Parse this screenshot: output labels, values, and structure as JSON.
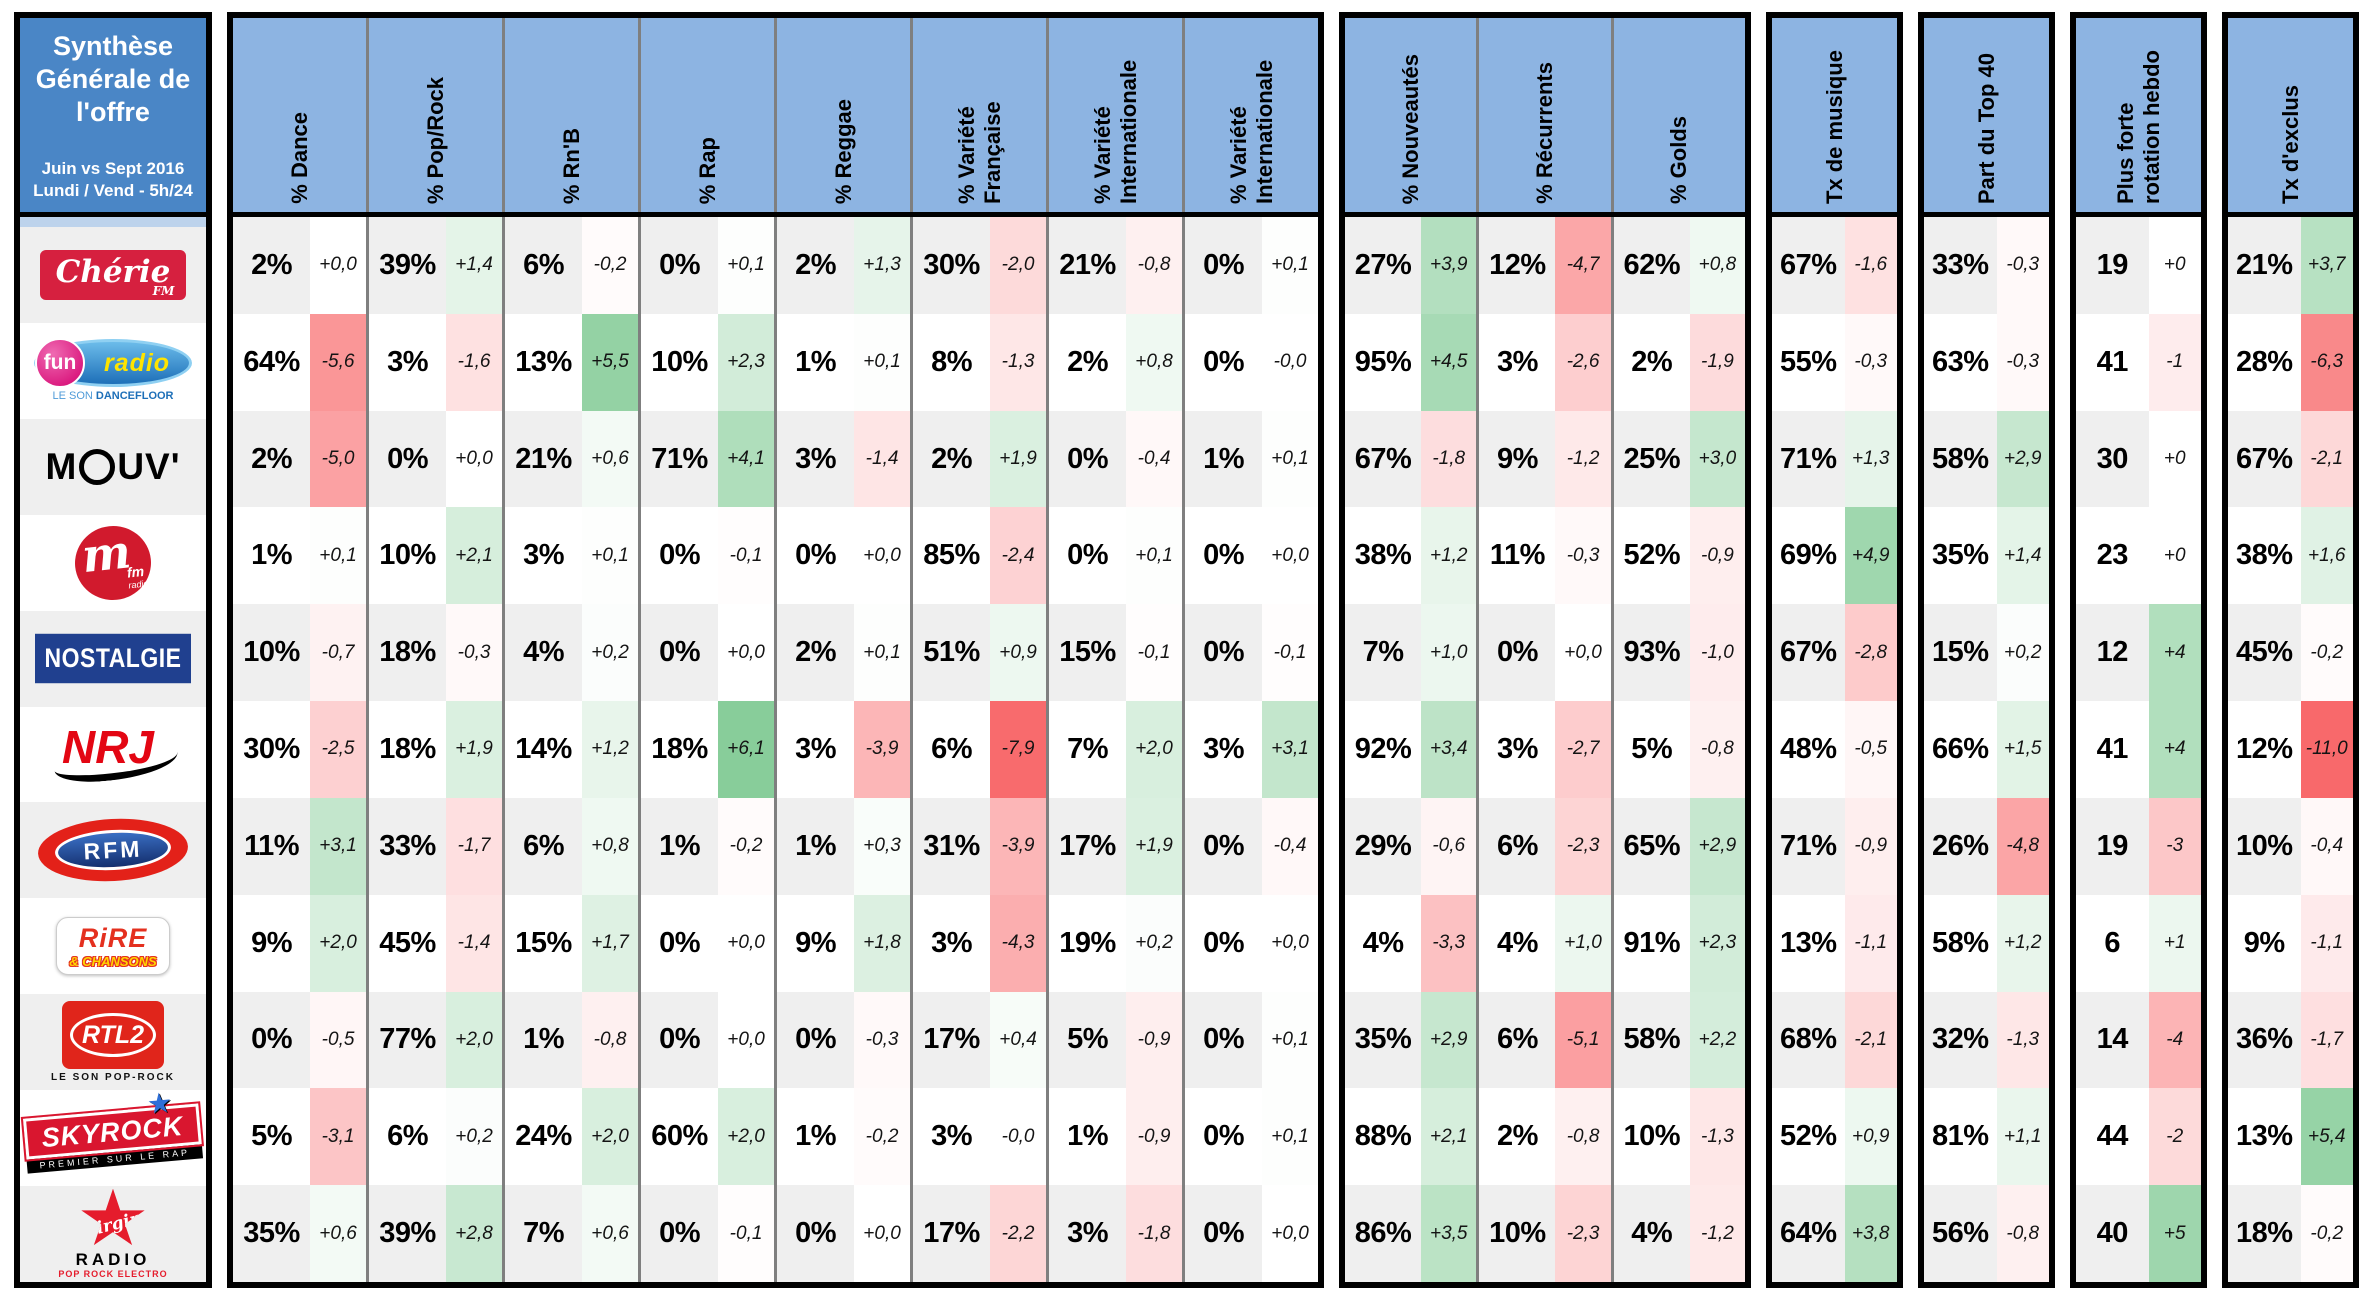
{
  "title": {
    "main": "Synthèse Générale de l'offre",
    "period": "Juin vs Sept 2016",
    "scope": "Lundi / Vend - 5h/24"
  },
  "colors": {
    "title_blue": "#4a86c6",
    "header_blue": "#8db4e2",
    "stripe_gray": "#efefef",
    "divider_gray": "#7f7f7f",
    "positive_green": "#63be7b",
    "negative_red": "#f8696b"
  },
  "delta_scale_max": 8,
  "groups": [
    {
      "id": "genres",
      "columns": [
        "% Dance",
        "% Pop/Rock",
        "% Rn'B",
        "% Rap",
        "% Reggae",
        "% Variété Française",
        "% Variété Internationale",
        "% Variété Internationale"
      ]
    },
    {
      "id": "cycle",
      "columns": [
        "% Nouveautés",
        "% Récurrents",
        "% Golds"
      ]
    },
    {
      "id": "musique",
      "columns": [
        "Tx de musique"
      ]
    },
    {
      "id": "top40",
      "columns": [
        "Part du Top 40"
      ]
    },
    {
      "id": "rotation",
      "columns": [
        "Plus forte rotation hebdo"
      ]
    },
    {
      "id": "exclus",
      "columns": [
        "Tx d'exclus"
      ]
    }
  ],
  "stations": [
    {
      "id": "cherie",
      "name": "Chérie FM",
      "logo": {
        "script": "Chérie",
        "fm": "FM"
      },
      "cells": [
        [
          "2%",
          "+0,0"
        ],
        [
          "39%",
          "+1,4"
        ],
        [
          "6%",
          "-0,2"
        ],
        [
          "0%",
          "+0,1"
        ],
        [
          "2%",
          "+1,3"
        ],
        [
          "30%",
          "-2,0"
        ],
        [
          "21%",
          "-0,8"
        ],
        [
          "0%",
          "+0,1"
        ],
        [
          "27%",
          "+3,9"
        ],
        [
          "12%",
          "-4,7"
        ],
        [
          "62%",
          "+0,8"
        ],
        [
          "67%",
          "-1,6"
        ],
        [
          "33%",
          "-0,3"
        ],
        [
          "19",
          "+0"
        ],
        [
          "21%",
          "+3,7"
        ]
      ]
    },
    {
      "id": "fun",
      "name": "Fun Radio",
      "logo": {
        "circle": "fun",
        "radio": "radio",
        "tag1": "LE SON",
        "tag2": "DANCEFLOOR"
      },
      "cells": [
        [
          "64%",
          "-5,6"
        ],
        [
          "3%",
          "-1,6"
        ],
        [
          "13%",
          "+5,5"
        ],
        [
          "10%",
          "+2,3"
        ],
        [
          "1%",
          "+0,1"
        ],
        [
          "8%",
          "-1,3"
        ],
        [
          "2%",
          "+0,8"
        ],
        [
          "0%",
          "-0,0"
        ],
        [
          "95%",
          "+4,5"
        ],
        [
          "3%",
          "-2,6"
        ],
        [
          "2%",
          "-1,9"
        ],
        [
          "55%",
          "-0,3"
        ],
        [
          "63%",
          "-0,3"
        ],
        [
          "41",
          "-1"
        ],
        [
          "28%",
          "-6,3"
        ]
      ]
    },
    {
      "id": "mouv",
      "name": "Mouv'",
      "logo": {
        "left": "M",
        "right": "UV'"
      },
      "cells": [
        [
          "2%",
          "-5,0"
        ],
        [
          "0%",
          "+0,0"
        ],
        [
          "21%",
          "+0,6"
        ],
        [
          "71%",
          "+4,1"
        ],
        [
          "3%",
          "-1,4"
        ],
        [
          "2%",
          "+1,9"
        ],
        [
          "0%",
          "-0,4"
        ],
        [
          "1%",
          "+0,1"
        ],
        [
          "67%",
          "-1,8"
        ],
        [
          "9%",
          "-1,2"
        ],
        [
          "25%",
          "+3,0"
        ],
        [
          "71%",
          "+1,3"
        ],
        [
          "58%",
          "+2,9"
        ],
        [
          "30",
          "+0"
        ],
        [
          "67%",
          "-2,1"
        ]
      ]
    },
    {
      "id": "mfm",
      "name": "M Radio",
      "logo": {
        "m": "m",
        "fm": "fm",
        "radio": "radio"
      },
      "cells": [
        [
          "1%",
          "+0,1"
        ],
        [
          "10%",
          "+2,1"
        ],
        [
          "3%",
          "+0,1"
        ],
        [
          "0%",
          "-0,1"
        ],
        [
          "0%",
          "+0,0"
        ],
        [
          "85%",
          "-2,4"
        ],
        [
          "0%",
          "+0,1"
        ],
        [
          "0%",
          "+0,0"
        ],
        [
          "38%",
          "+1,2"
        ],
        [
          "11%",
          "-0,3"
        ],
        [
          "52%",
          "-0,9"
        ],
        [
          "69%",
          "+4,9"
        ],
        [
          "35%",
          "+1,4"
        ],
        [
          "23",
          "+0"
        ],
        [
          "38%",
          "+1,6"
        ]
      ]
    },
    {
      "id": "nostalgie",
      "name": "Nostalgie",
      "logo": {
        "text": "NOSTALGIE"
      },
      "cells": [
        [
          "10%",
          "-0,7"
        ],
        [
          "18%",
          "-0,3"
        ],
        [
          "4%",
          "+0,2"
        ],
        [
          "0%",
          "+0,0"
        ],
        [
          "2%",
          "+0,1"
        ],
        [
          "51%",
          "+0,9"
        ],
        [
          "15%",
          "-0,1"
        ],
        [
          "0%",
          "-0,1"
        ],
        [
          "7%",
          "+1,0"
        ],
        [
          "0%",
          "+0,0"
        ],
        [
          "93%",
          "-1,0"
        ],
        [
          "67%",
          "-2,8"
        ],
        [
          "15%",
          "+0,2"
        ],
        [
          "12",
          "+4"
        ],
        [
          "45%",
          "-0,2"
        ]
      ]
    },
    {
      "id": "nrj",
      "name": "NRJ",
      "logo": {
        "text": "NRJ"
      },
      "cells": [
        [
          "30%",
          "-2,5"
        ],
        [
          "18%",
          "+1,9"
        ],
        [
          "14%",
          "+1,2"
        ],
        [
          "18%",
          "+6,1"
        ],
        [
          "3%",
          "-3,9"
        ],
        [
          "6%",
          "-7,9"
        ],
        [
          "7%",
          "+2,0"
        ],
        [
          "3%",
          "+3,1"
        ],
        [
          "92%",
          "+3,4"
        ],
        [
          "3%",
          "-2,7"
        ],
        [
          "5%",
          "-0,8"
        ],
        [
          "48%",
          "-0,5"
        ],
        [
          "66%",
          "+1,5"
        ],
        [
          "41",
          "+4"
        ],
        [
          "12%",
          "-11,0"
        ]
      ]
    },
    {
      "id": "rfm",
      "name": "RFM",
      "logo": {
        "text": "RFM"
      },
      "cells": [
        [
          "11%",
          "+3,1"
        ],
        [
          "33%",
          "-1,7"
        ],
        [
          "6%",
          "+0,8"
        ],
        [
          "1%",
          "-0,2"
        ],
        [
          "1%",
          "+0,3"
        ],
        [
          "31%",
          "-3,9"
        ],
        [
          "17%",
          "+1,9"
        ],
        [
          "0%",
          "-0,4"
        ],
        [
          "29%",
          "-0,6"
        ],
        [
          "6%",
          "-2,3"
        ],
        [
          "65%",
          "+2,9"
        ],
        [
          "71%",
          "-0,9"
        ],
        [
          "26%",
          "-4,8"
        ],
        [
          "19",
          "-3"
        ],
        [
          "10%",
          "-0,4"
        ]
      ]
    },
    {
      "id": "rire",
      "name": "Rire & Chansons",
      "logo": {
        "line1": "RiRE",
        "line2": "& CHANSONS"
      },
      "cells": [
        [
          "9%",
          "+2,0"
        ],
        [
          "45%",
          "-1,4"
        ],
        [
          "15%",
          "+1,7"
        ],
        [
          "0%",
          "+0,0"
        ],
        [
          "9%",
          "+1,8"
        ],
        [
          "3%",
          "-4,3"
        ],
        [
          "19%",
          "+0,2"
        ],
        [
          "0%",
          "+0,0"
        ],
        [
          "4%",
          "-3,3"
        ],
        [
          "4%",
          "+1,0"
        ],
        [
          "91%",
          "+2,3"
        ],
        [
          "13%",
          "-1,1"
        ],
        [
          "58%",
          "+1,2"
        ],
        [
          "6",
          "+1"
        ],
        [
          "9%",
          "-1,1"
        ]
      ]
    },
    {
      "id": "rtl2",
      "name": "RTL2",
      "logo": {
        "text": "RTL2",
        "tagline": "LE SON POP-ROCK"
      },
      "cells": [
        [
          "0%",
          "-0,5"
        ],
        [
          "77%",
          "+2,0"
        ],
        [
          "1%",
          "-0,8"
        ],
        [
          "0%",
          "+0,0"
        ],
        [
          "0%",
          "-0,3"
        ],
        [
          "17%",
          "+0,4"
        ],
        [
          "5%",
          "-0,9"
        ],
        [
          "0%",
          "+0,1"
        ],
        [
          "35%",
          "+2,9"
        ],
        [
          "6%",
          "-5,1"
        ],
        [
          "58%",
          "+2,2"
        ],
        [
          "68%",
          "-2,1"
        ],
        [
          "32%",
          "-1,3"
        ],
        [
          "14",
          "-4"
        ],
        [
          "36%",
          "-1,7"
        ]
      ]
    },
    {
      "id": "skyrock",
      "name": "Skyrock",
      "logo": {
        "text": "SKYROCK",
        "tagline": "PREMIER SUR LE RAP",
        "star": "★"
      },
      "cells": [
        [
          "5%",
          "-3,1"
        ],
        [
          "6%",
          "+0,2"
        ],
        [
          "24%",
          "+2,0"
        ],
        [
          "60%",
          "+2,0"
        ],
        [
          "1%",
          "-0,2"
        ],
        [
          "3%",
          "-0,0"
        ],
        [
          "1%",
          "-0,9"
        ],
        [
          "0%",
          "+0,1"
        ],
        [
          "88%",
          "+2,1"
        ],
        [
          "2%",
          "-0,8"
        ],
        [
          "10%",
          "-1,3"
        ],
        [
          "52%",
          "+0,9"
        ],
        [
          "81%",
          "+1,1"
        ],
        [
          "44",
          "-2"
        ],
        [
          "13%",
          "+5,4"
        ]
      ]
    },
    {
      "id": "virgin",
      "name": "Virgin Radio",
      "logo": {
        "script": "Virgin",
        "line2": "RADIO",
        "line3": "POP ROCK ELECTRO"
      },
      "cells": [
        [
          "35%",
          "+0,6"
        ],
        [
          "39%",
          "+2,8"
        ],
        [
          "7%",
          "+0,6"
        ],
        [
          "0%",
          "-0,1"
        ],
        [
          "0%",
          "+0,0"
        ],
        [
          "17%",
          "-2,2"
        ],
        [
          "3%",
          "-1,8"
        ],
        [
          "0%",
          "+0,0"
        ],
        [
          "86%",
          "+3,5"
        ],
        [
          "10%",
          "-2,3"
        ],
        [
          "4%",
          "-1,2"
        ],
        [
          "64%",
          "+3,8"
        ],
        [
          "56%",
          "-0,8"
        ],
        [
          "40",
          "+5"
        ],
        [
          "18%",
          "-0,2"
        ]
      ]
    }
  ]
}
